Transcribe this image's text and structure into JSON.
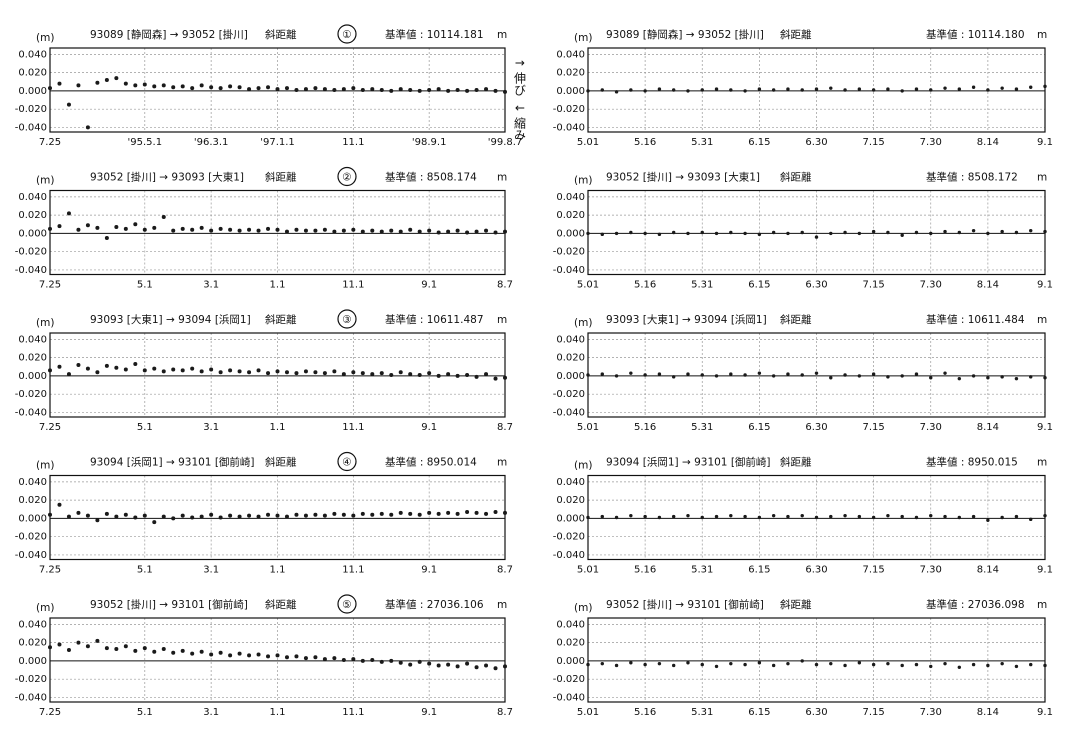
{
  "chart_data": [
    {
      "type": "scatter",
      "unit_label": "(m)",
      "route": "93089 [静岡森] → 93052 [掛川]",
      "measure": "斜距離",
      "number": "①",
      "baseline": "基準値 : 10114.181",
      "baseline_unit": "m",
      "annotations": [
        "↑ 伸び",
        "↓ 縮み"
      ],
      "categories": [
        "7.25",
        null,
        null,
        null,
        null,
        null,
        null,
        null,
        null,
        null,
        "'95.5.1",
        null,
        null,
        null,
        null,
        null,
        null,
        "'96.3.1",
        null,
        null,
        null,
        null,
        null,
        null,
        "'97.1.1",
        null,
        null,
        null,
        null,
        null,
        null,
        null,
        "11.1",
        null,
        null,
        null,
        null,
        null,
        null,
        null,
        "'98.9.1",
        null,
        null,
        null,
        null,
        null,
        null,
        null,
        "'99.8.7"
      ],
      "values": [
        0.003,
        0.008,
        -0.015,
        0.006,
        -0.04,
        0.009,
        0.012,
        0.014,
        0.008,
        0.006,
        0.007,
        0.005,
        0.006,
        0.004,
        0.005,
        0.003,
        0.006,
        0.004,
        0.003,
        0.005,
        0.004,
        0.002,
        0.003,
        0.004,
        0.002,
        0.003,
        0.001,
        0.002,
        0.003,
        0.002,
        0.001,
        0.002,
        0.003,
        0.001,
        0.002,
        0.001,
        0.0,
        0.002,
        0.001,
        0.0,
        0.001,
        0.002,
        0.0,
        0.001,
        0.0,
        0.001,
        0.002,
        0.0,
        -0.001
      ],
      "color": "#1a1a1a",
      "ylim": [
        -0.045,
        0.047
      ],
      "yticks": [
        {
          "value": 0.04,
          "label": "0.040"
        },
        {
          "value": 0.02,
          "label": "0.020"
        },
        {
          "value": 0,
          "label": "0.000"
        },
        {
          "value": -0.02,
          "label": "-0.020"
        },
        {
          "value": -0.04,
          "label": "-0.040"
        }
      ],
      "grid": true
    },
    {
      "type": "scatter",
      "unit_label": "(m)",
      "route": "93089 [静岡森] → 93052 [掛川]",
      "measure": "斜距離",
      "baseline": "基準値 : 10114.180",
      "baseline_unit": "m",
      "categories": [
        "5.01",
        null,
        null,
        null,
        "5.16",
        null,
        null,
        null,
        "5.31",
        null,
        null,
        null,
        "6.15",
        null,
        null,
        null,
        "6.30",
        null,
        null,
        null,
        "7.15",
        null,
        null,
        null,
        "7.30",
        null,
        null,
        null,
        "8.14",
        null,
        null,
        null,
        "9.1"
      ],
      "values": [
        0.0,
        0.001,
        -0.001,
        0.001,
        0.0,
        0.002,
        0.001,
        0.0,
        0.001,
        0.002,
        0.001,
        0.0,
        0.002,
        0.001,
        0.002,
        0.001,
        0.002,
        0.003,
        0.001,
        0.002,
        0.001,
        0.002,
        0.0,
        0.002,
        0.001,
        0.003,
        0.002,
        0.004,
        0.001,
        0.003,
        0.002,
        0.004,
        0.005
      ],
      "color": "#1a1a1a",
      "ylim": [
        -0.045,
        0.047
      ],
      "yticks": [
        {
          "value": 0.04,
          "label": "0.040"
        },
        {
          "value": 0.02,
          "label": "0.020"
        },
        {
          "value": 0,
          "label": "0.000"
        },
        {
          "value": -0.02,
          "label": "-0.020"
        },
        {
          "value": -0.04,
          "label": "-0.040"
        }
      ],
      "grid": true
    },
    {
      "type": "scatter",
      "unit_label": "(m)",
      "route": "93052 [掛川] → 93093 [大東1]",
      "measure": "斜距離",
      "number": "②",
      "baseline": "基準値 : 8508.174",
      "baseline_unit": "m",
      "categories": [
        "7.25",
        null,
        null,
        null,
        null,
        null,
        null,
        null,
        null,
        null,
        "5.1",
        null,
        null,
        null,
        null,
        null,
        null,
        "3.1",
        null,
        null,
        null,
        null,
        null,
        null,
        "1.1",
        null,
        null,
        null,
        null,
        null,
        null,
        null,
        "11.1",
        null,
        null,
        null,
        null,
        null,
        null,
        null,
        "9.1",
        null,
        null,
        null,
        null,
        null,
        null,
        null,
        "8.7"
      ],
      "values": [
        0.005,
        0.008,
        0.022,
        0.004,
        0.009,
        0.006,
        -0.005,
        0.007,
        0.005,
        0.01,
        0.004,
        0.006,
        0.018,
        0.003,
        0.005,
        0.004,
        0.006,
        0.003,
        0.005,
        0.004,
        0.003,
        0.004,
        0.003,
        0.005,
        0.004,
        0.002,
        0.004,
        0.003,
        0.003,
        0.004,
        0.002,
        0.003,
        0.004,
        0.002,
        0.003,
        0.002,
        0.003,
        0.002,
        0.004,
        0.002,
        0.003,
        0.001,
        0.002,
        0.003,
        0.001,
        0.002,
        0.003,
        0.001,
        0.002
      ],
      "color": "#1a1a1a",
      "ylim": [
        -0.045,
        0.047
      ],
      "yticks": [
        {
          "value": 0.04,
          "label": "0.040"
        },
        {
          "value": 0.02,
          "label": "0.020"
        },
        {
          "value": 0,
          "label": "0.000"
        },
        {
          "value": -0.02,
          "label": "-0.020"
        },
        {
          "value": -0.04,
          "label": "-0.040"
        }
      ],
      "grid": true
    },
    {
      "type": "scatter",
      "unit_label": "(m)",
      "route": "93052 [掛川] → 93093 [大東1]",
      "measure": "斜距離",
      "baseline": "基準値 : 8508.172",
      "baseline_unit": "m",
      "categories": [
        "5.01",
        null,
        null,
        null,
        "5.16",
        null,
        null,
        null,
        "5.31",
        null,
        null,
        null,
        "6.15",
        null,
        null,
        null,
        "6.30",
        null,
        null,
        null,
        "7.15",
        null,
        null,
        null,
        "7.30",
        null,
        null,
        null,
        "8.14",
        null,
        null,
        null,
        "9.1"
      ],
      "values": [
        0.0,
        -0.001,
        0.0,
        0.001,
        0.0,
        -0.001,
        0.001,
        0.0,
        0.001,
        0.0,
        0.001,
        0.0,
        -0.001,
        0.001,
        0.0,
        0.001,
        -0.004,
        0.0,
        0.001,
        0.0,
        0.002,
        0.001,
        -0.002,
        0.001,
        0.0,
        0.002,
        0.001,
        0.003,
        0.0,
        0.002,
        0.001,
        0.003,
        0.002
      ],
      "color": "#1a1a1a",
      "ylim": [
        -0.045,
        0.047
      ],
      "yticks": [
        {
          "value": 0.04,
          "label": "0.040"
        },
        {
          "value": 0.02,
          "label": "0.020"
        },
        {
          "value": 0,
          "label": "0.000"
        },
        {
          "value": -0.02,
          "label": "-0.020"
        },
        {
          "value": -0.04,
          "label": "-0.040"
        }
      ],
      "grid": true
    },
    {
      "type": "scatter",
      "unit_label": "(m)",
      "route": "93093 [大東1] → 93094 [浜岡1]",
      "measure": "斜距離",
      "number": "③",
      "baseline": "基準値 : 10611.487",
      "baseline_unit": "m",
      "categories": [
        "7.25",
        null,
        null,
        null,
        null,
        null,
        null,
        null,
        null,
        null,
        "5.1",
        null,
        null,
        null,
        null,
        null,
        null,
        "3.1",
        null,
        null,
        null,
        null,
        null,
        null,
        "1.1",
        null,
        null,
        null,
        null,
        null,
        null,
        null,
        "11.1",
        null,
        null,
        null,
        null,
        null,
        null,
        null,
        "9.1",
        null,
        null,
        null,
        null,
        null,
        null,
        null,
        "8.7"
      ],
      "values": [
        0.006,
        0.01,
        0.002,
        0.012,
        0.008,
        0.004,
        0.011,
        0.009,
        0.007,
        0.013,
        0.006,
        0.008,
        0.005,
        0.007,
        0.006,
        0.008,
        0.005,
        0.007,
        0.004,
        0.006,
        0.005,
        0.004,
        0.006,
        0.003,
        0.005,
        0.004,
        0.003,
        0.005,
        0.004,
        0.003,
        0.005,
        0.002,
        0.004,
        0.003,
        0.002,
        0.003,
        0.001,
        0.004,
        0.002,
        0.001,
        0.003,
        0.0,
        0.002,
        0.0,
        0.001,
        -0.001,
        0.002,
        -0.003,
        -0.002
      ],
      "color": "#1a1a1a",
      "ylim": [
        -0.045,
        0.047
      ],
      "yticks": [
        {
          "value": 0.04,
          "label": "0.040"
        },
        {
          "value": 0.02,
          "label": "0.020"
        },
        {
          "value": 0,
          "label": "0.000"
        },
        {
          "value": -0.02,
          "label": "-0.020"
        },
        {
          "value": -0.04,
          "label": "-0.040"
        }
      ],
      "grid": true
    },
    {
      "type": "scatter",
      "unit_label": "(m)",
      "route": "93093 [大東1] → 93094 [浜岡1]",
      "measure": "斜距離",
      "baseline": "基準値 : 10611.484",
      "baseline_unit": "m",
      "categories": [
        "5.01",
        null,
        null,
        null,
        "5.16",
        null,
        null,
        null,
        "5.31",
        null,
        null,
        null,
        "6.15",
        null,
        null,
        null,
        "6.30",
        null,
        null,
        null,
        "7.15",
        null,
        null,
        null,
        "7.30",
        null,
        null,
        null,
        "8.14",
        null,
        null,
        null,
        "9.1"
      ],
      "values": [
        0.001,
        0.002,
        0.0,
        0.003,
        0.001,
        0.002,
        -0.001,
        0.002,
        0.001,
        0.0,
        0.002,
        0.001,
        0.003,
        0.0,
        0.002,
        0.001,
        0.003,
        -0.002,
        0.001,
        0.0,
        0.002,
        -0.001,
        0.0,
        0.002,
        -0.002,
        0.003,
        -0.003,
        0.0,
        -0.002,
        -0.001,
        -0.003,
        -0.001,
        -0.002
      ],
      "color": "#1a1a1a",
      "ylim": [
        -0.045,
        0.047
      ],
      "yticks": [
        {
          "value": 0.04,
          "label": "0.040"
        },
        {
          "value": 0.02,
          "label": "0.020"
        },
        {
          "value": 0,
          "label": "0.000"
        },
        {
          "value": -0.02,
          "label": "-0.020"
        },
        {
          "value": -0.04,
          "label": "-0.040"
        }
      ],
      "grid": true
    },
    {
      "type": "scatter",
      "unit_label": "(m)",
      "route": "93094 [浜岡1] → 93101 [御前崎]",
      "measure": "斜距離",
      "number": "④",
      "baseline": "基準値 : 8950.014",
      "baseline_unit": "m",
      "categories": [
        "7.25",
        null,
        null,
        null,
        null,
        null,
        null,
        null,
        null,
        null,
        "5.1",
        null,
        null,
        null,
        null,
        null,
        null,
        "3.1",
        null,
        null,
        null,
        null,
        null,
        null,
        "1.1",
        null,
        null,
        null,
        null,
        null,
        null,
        null,
        "11.1",
        null,
        null,
        null,
        null,
        null,
        null,
        null,
        "9.1",
        null,
        null,
        null,
        null,
        null,
        null,
        null,
        "8.7"
      ],
      "values": [
        0.004,
        0.015,
        0.002,
        0.006,
        0.003,
        -0.002,
        0.005,
        0.002,
        0.004,
        0.001,
        0.003,
        -0.004,
        0.002,
        0.0,
        0.003,
        0.001,
        0.002,
        0.004,
        0.001,
        0.003,
        0.002,
        0.003,
        0.002,
        0.004,
        0.003,
        0.002,
        0.004,
        0.003,
        0.004,
        0.003,
        0.005,
        0.004,
        0.003,
        0.005,
        0.004,
        0.005,
        0.004,
        0.006,
        0.005,
        0.004,
        0.006,
        0.005,
        0.006,
        0.005,
        0.007,
        0.006,
        0.005,
        0.007,
        0.006
      ],
      "color": "#1a1a1a",
      "ylim": [
        -0.045,
        0.047
      ],
      "yticks": [
        {
          "value": 0.04,
          "label": "0.040"
        },
        {
          "value": 0.02,
          "label": "0.020"
        },
        {
          "value": 0,
          "label": "0.000"
        },
        {
          "value": -0.02,
          "label": "-0.020"
        },
        {
          "value": -0.04,
          "label": "-0.040"
        }
      ],
      "grid": true
    },
    {
      "type": "scatter",
      "unit_label": "(m)",
      "route": "93094 [浜岡1] → 93101 [御前崎]",
      "measure": "斜距離",
      "baseline": "基準値 : 8950.015",
      "baseline_unit": "m",
      "categories": [
        "5.01",
        null,
        null,
        null,
        "5.16",
        null,
        null,
        null,
        "5.31",
        null,
        null,
        null,
        "6.15",
        null,
        null,
        null,
        "6.30",
        null,
        null,
        null,
        "7.15",
        null,
        null,
        null,
        "7.30",
        null,
        null,
        null,
        "8.14",
        null,
        null,
        null,
        "9.1"
      ],
      "values": [
        0.001,
        0.002,
        0.001,
        0.003,
        0.002,
        0.001,
        0.002,
        0.003,
        0.001,
        0.002,
        0.003,
        0.002,
        0.001,
        0.003,
        0.002,
        0.003,
        0.001,
        0.002,
        0.003,
        0.002,
        0.001,
        0.003,
        0.002,
        0.001,
        0.003,
        0.002,
        0.001,
        0.002,
        -0.002,
        0.001,
        0.002,
        -0.001,
        0.003
      ],
      "color": "#1a1a1a",
      "ylim": [
        -0.045,
        0.047
      ],
      "yticks": [
        {
          "value": 0.04,
          "label": "0.040"
        },
        {
          "value": 0.02,
          "label": "0.020"
        },
        {
          "value": 0,
          "label": "0.000"
        },
        {
          "value": -0.02,
          "label": "-0.020"
        },
        {
          "value": -0.04,
          "label": "-0.040"
        }
      ],
      "grid": true
    },
    {
      "type": "scatter",
      "unit_label": "(m)",
      "route": "93052 [掛川] → 93101 [御前崎]",
      "measure": "斜距離",
      "number": "⑤",
      "baseline": "基準値 : 27036.106",
      "baseline_unit": "m",
      "categories": [
        "7.25",
        null,
        null,
        null,
        null,
        null,
        null,
        null,
        null,
        null,
        "5.1",
        null,
        null,
        null,
        null,
        null,
        null,
        "3.1",
        null,
        null,
        null,
        null,
        null,
        null,
        "1.1",
        null,
        null,
        null,
        null,
        null,
        null,
        null,
        "11.1",
        null,
        null,
        null,
        null,
        null,
        null,
        null,
        "9.1",
        null,
        null,
        null,
        null,
        null,
        null,
        null,
        "8.7"
      ],
      "values": [
        0.015,
        0.018,
        0.012,
        0.02,
        0.016,
        0.022,
        0.014,
        0.013,
        0.016,
        0.011,
        0.014,
        0.01,
        0.013,
        0.009,
        0.011,
        0.008,
        0.01,
        0.007,
        0.009,
        0.006,
        0.008,
        0.006,
        0.007,
        0.005,
        0.006,
        0.004,
        0.005,
        0.003,
        0.004,
        0.002,
        0.003,
        0.001,
        0.002,
        0.0,
        0.001,
        -0.001,
        0.0,
        -0.002,
        -0.004,
        -0.001,
        -0.003,
        -0.005,
        -0.004,
        -0.006,
        -0.003,
        -0.007,
        -0.005,
        -0.008,
        -0.006
      ],
      "color": "#1a1a1a",
      "ylim": [
        -0.045,
        0.047
      ],
      "yticks": [
        {
          "value": 0.04,
          "label": "0.040"
        },
        {
          "value": 0.02,
          "label": "0.020"
        },
        {
          "value": 0,
          "label": "0.000"
        },
        {
          "value": -0.02,
          "label": "-0.020"
        },
        {
          "value": -0.04,
          "label": "-0.040"
        }
      ],
      "grid": true
    },
    {
      "type": "scatter",
      "unit_label": "(m)",
      "route": "93052 [掛川] → 93101 [御前崎]",
      "measure": "斜距離",
      "baseline": "基準値 : 27036.098",
      "baseline_unit": "m",
      "categories": [
        "5.01",
        null,
        null,
        null,
        "5.16",
        null,
        null,
        null,
        "5.31",
        null,
        null,
        null,
        "6.15",
        null,
        null,
        null,
        "6.30",
        null,
        null,
        null,
        "7.15",
        null,
        null,
        null,
        "7.30",
        null,
        null,
        null,
        "8.14",
        null,
        null,
        null,
        "9.1"
      ],
      "values": [
        -0.004,
        -0.003,
        -0.005,
        -0.002,
        -0.004,
        -0.003,
        -0.005,
        -0.002,
        -0.004,
        -0.006,
        -0.003,
        -0.004,
        -0.002,
        -0.005,
        -0.003,
        0.0,
        -0.004,
        -0.003,
        -0.005,
        -0.002,
        -0.004,
        -0.003,
        -0.005,
        -0.004,
        -0.006,
        -0.003,
        -0.007,
        -0.004,
        -0.005,
        -0.003,
        -0.006,
        -0.004,
        -0.005
      ],
      "color": "#1a1a1a",
      "ylim": [
        -0.045,
        0.047
      ],
      "yticks": [
        {
          "value": 0.04,
          "label": "0.040"
        },
        {
          "value": 0.02,
          "label": "0.020"
        },
        {
          "value": 0,
          "label": "0.000"
        },
        {
          "value": -0.02,
          "label": "-0.020"
        },
        {
          "value": -0.04,
          "label": "-0.040"
        }
      ],
      "grid": true
    }
  ]
}
